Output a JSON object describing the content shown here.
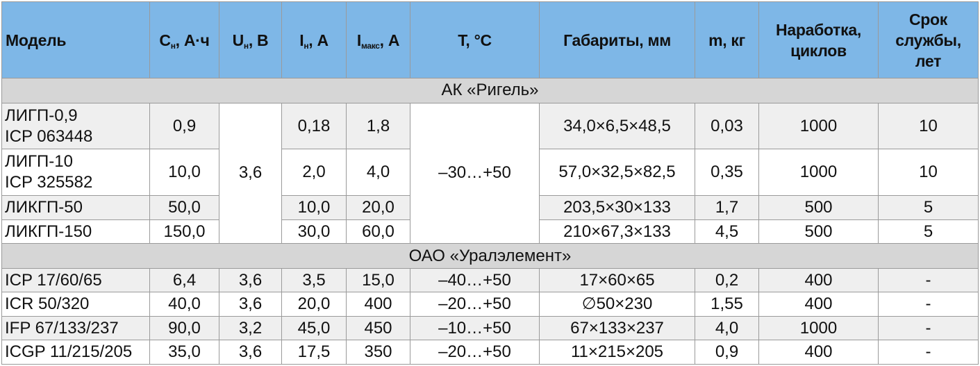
{
  "headers": {
    "model": "Модель",
    "capacity_main": "C",
    "capacity_sub": "н",
    "capacity_unit": ", А·ч",
    "voltage_main": "U",
    "voltage_sub": "н",
    "voltage_unit": ", В",
    "current_main": "I",
    "current_sub": "н",
    "current_unit": ", А",
    "max_current_main": "I",
    "max_current_sub": "макс",
    "max_current_unit": ", А",
    "temperature": "T, °C",
    "dimensions": "Габариты, мм",
    "mass": "m, кг",
    "cycles": "Наработка, циклов",
    "lifetime": "Срок службы, лет"
  },
  "groups": [
    {
      "name": "АК «Ригель»",
      "shared_voltage": "3,6",
      "shared_temperature": "–30…+50",
      "rows": [
        {
          "model_line1": "ЛИГП-0,9",
          "model_line2": "ICP 063448",
          "capacity": "0,9",
          "current": "0,18",
          "max_current": "1,8",
          "dimensions": "34,0×6,5×48,5",
          "mass": "0,03",
          "cycles": "1000",
          "lifetime": "10"
        },
        {
          "model_line1": "ЛИГП-10",
          "model_line2": "ICP 325582",
          "capacity": "10,0",
          "current": "2,0",
          "max_current": "4,0",
          "dimensions": "57,0×32,5×82,5",
          "mass": "0,35",
          "cycles": "1000",
          "lifetime": "10"
        },
        {
          "model_line1": "ЛИКГП-50",
          "model_line2": "",
          "capacity": "50,0",
          "current": "10,0",
          "max_current": "20,0",
          "dimensions": "203,5×30×133",
          "mass": "1,7",
          "cycles": "500",
          "lifetime": "5"
        },
        {
          "model_line1": "ЛИКГП-150",
          "model_line2": "",
          "capacity": "150,0",
          "current": "30,0",
          "max_current": "60,0",
          "dimensions": "210×67,3×133",
          "mass": "4,5",
          "cycles": "500",
          "lifetime": "5"
        }
      ]
    },
    {
      "name": "ОАО «Уралэлемент»",
      "rows": [
        {
          "model": "ICP 17/60/65",
          "capacity": "6,4",
          "voltage": "3,6",
          "current": "3,5",
          "max_current": "15,0",
          "temperature": "–40…+50",
          "dimensions": "17×60×65",
          "mass": "0,2",
          "cycles": "400",
          "lifetime": "-"
        },
        {
          "model": "ICR 50/320",
          "capacity": "40,0",
          "voltage": "3,6",
          "current": "20,0",
          "max_current": "400",
          "temperature": "–20…+50",
          "dimensions": "∅50×230",
          "mass": "1,55",
          "cycles": "400",
          "lifetime": "-"
        },
        {
          "model": "IFP 67/133/237",
          "capacity": "90,0",
          "voltage": "3,2",
          "current": "45,0",
          "max_current": "450",
          "temperature": "–10…+50",
          "dimensions": "67×133×237",
          "mass": "4,0",
          "cycles": "1000",
          "lifetime": "-"
        },
        {
          "model": "ICGP 11/215/205",
          "capacity": "35,0",
          "voltage": "3,6",
          "current": "17,5",
          "max_current": "350",
          "temperature": "–20…+50",
          "dimensions": "11×215×205",
          "mass": "0,9",
          "cycles": "400",
          "lifetime": "-"
        }
      ]
    }
  ]
}
